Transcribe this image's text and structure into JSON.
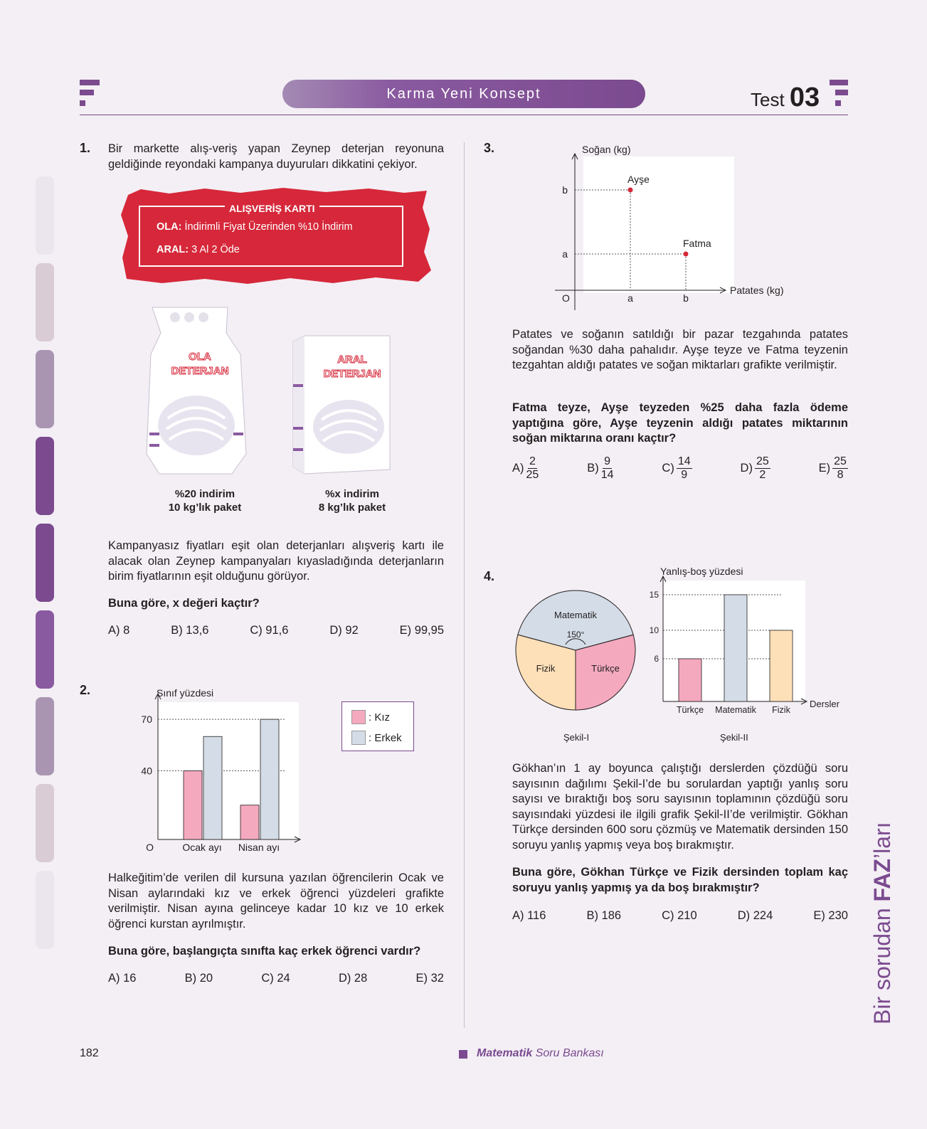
{
  "header": {
    "banner": "Karma Yeni Konsept",
    "test_word": "Test",
    "test_number": "03"
  },
  "q1": {
    "number": "1.",
    "intro": "Bir markette alış-veriş yapan Zeynep deterjan reyonuna geldiğinde reyondaki kampanya duyuruları dikkatini çekiyor.",
    "card": {
      "title": "ALIŞVERİŞ KARTI",
      "ola_label": "OLA:",
      "ola_text": "İndirimli Fiyat Üzerinden %10 İndirim",
      "aral_label": "ARAL:",
      "aral_text": "3 Al 2 Öde"
    },
    "product1": {
      "name": "OLA DETERJAN",
      "line1": "%20 indirim",
      "line2": "10 kg’lık paket"
    },
    "product2": {
      "name": "ARAL DETERJAN",
      "line1": "%x indirim",
      "line2": "8 kg’lık paket"
    },
    "body": "Kampanyasız fiyatları eşit olan deterjanları alışveriş kartı ile alacak olan Zeynep kampanyaları kıyasladığında deterjanların birim fiyatlarının eşit olduğunu görüyor.",
    "question": "Buna göre, x değeri kaçtır?",
    "choices": [
      "A) 8",
      "B) 13,6",
      "C) 91,6",
      "D) 92",
      "E) 99,95"
    ]
  },
  "q2": {
    "number": "2.",
    "body": "Halkeğitim’de verilen dil kursuna yazılan öğrencilerin Ocak ve Nisan aylarındaki kız ve erkek öğrenci yüzdeleri grafikte verilmiştir. Nisan ayına gelinceye kadar 10 kız ve 10 erkek öğrenci kurstan ayrılmıştır.",
    "question": "Buna göre, başlangıçta sınıfta kaç erkek öğrenci vardır?",
    "choices": [
      "A) 16",
      "B) 20",
      "C) 24",
      "D) 28",
      "E) 32"
    ]
  },
  "q3": {
    "number": "3.",
    "body": "Patates ve soğanın satıldığı bir pazar tezgahında patates soğandan %30 daha pahalıdır. Ayşe teyze ve Fatma teyzenin tezgahtan aldığı patates ve soğan miktarları grafikte verilmiştir.",
    "question": "Fatma teyze, Ayşe teyzeden %25 daha fazla ödeme yaptığına göre, Ayşe teyzenin aldığı patates miktarının soğan miktarına oranı kaçtır?",
    "choices": [
      {
        "label": "A)",
        "num": "2",
        "den": "25"
      },
      {
        "label": "B)",
        "num": "9",
        "den": "14"
      },
      {
        "label": "C)",
        "num": "14",
        "den": "9"
      },
      {
        "label": "D)",
        "num": "25",
        "den": "2"
      },
      {
        "label": "E)",
        "num": "25",
        "den": "8"
      }
    ]
  },
  "q4": {
    "number": "4.",
    "body": "Gökhan’ın 1 ay boyunca çalıştığı derslerden çözdüğü soru sayısının dağılımı Şekil-I’de bu sorulardan yaptığı yanlış soru sayısı ve bıraktığı boş soru sayısının toplamının çözdüğü soru sayısındaki yüzdesi ile ilgili grafik Şekil-II’de verilmiştir. Gökhan Türkçe dersinden 600 soru çözmüş ve Matematik dersinden 150 soruyu yanlış yapmış veya boş bırakmıştır.",
    "question": "Buna göre, Gökhan Türkçe ve Fizik dersinden toplam kaç soruyu yanlış yapmış ya da boş bırakmıştır?",
    "choices": [
      "A) 116",
      "B) 186",
      "C) 210",
      "D) 224",
      "E) 230"
    ],
    "pie_caption": "Şekil-I",
    "bar_caption": "Şekil-II"
  },
  "chart_data": [
    {
      "type": "bar",
      "ylabel": "Sınıf yüzdesi",
      "origin_label": "O",
      "categories": [
        "Ocak ayı",
        "Nisan ayı"
      ],
      "series": [
        {
          "name": ": Kız",
          "values": [
            40,
            20
          ],
          "color": "#f4a9bf"
        },
        {
          "name": ": Erkek",
          "values": [
            60,
            70
          ],
          "color": "#d4dde7"
        }
      ],
      "yticks": [
        40,
        70
      ],
      "ylim": [
        0,
        80
      ]
    },
    {
      "type": "scatter",
      "xlabel": "Patates (kg)",
      "ylabel": "Soğan (kg)",
      "origin_label": "O",
      "xticks": [
        "a",
        "b"
      ],
      "yticks": [
        "a",
        "b"
      ],
      "points": [
        {
          "name": "Ayşe",
          "x": "a",
          "y": "b"
        },
        {
          "name": "Fatma",
          "x": "b",
          "y": "a"
        }
      ],
      "point_color": "#d6283a"
    },
    {
      "type": "pie",
      "slices": [
        {
          "name": "Matematik",
          "angle": 150,
          "color": "#d4dde7"
        },
        {
          "name": "Türkçe",
          "angle": 105,
          "color": "#f4a9bf"
        },
        {
          "name": "Fizik",
          "angle": 105,
          "color": "#fde0b8"
        }
      ],
      "angle_label": "150°"
    },
    {
      "type": "bar",
      "ylabel": "Yanlış-boş yüzdesi",
      "xlabel": "Dersler",
      "categories": [
        "Türkçe",
        "Matematik",
        "Fizik"
      ],
      "values": [
        6,
        15,
        10
      ],
      "colors": [
        "#f4a9bf",
        "#d4dde7",
        "#fde0b8"
      ],
      "yticks": [
        6,
        10,
        15
      ],
      "ylim": [
        0,
        17
      ]
    }
  ],
  "side": {
    "pre": "Bir sorudan ",
    "brand": "FAZ",
    "post": "’ları"
  },
  "footer": {
    "page": "182",
    "subject": "Matematik",
    "book": " Soru Bankası"
  },
  "colors": {
    "accent": "#7b4a8f",
    "card_red": "#d6283a",
    "page_bg": "#f3eff5"
  }
}
